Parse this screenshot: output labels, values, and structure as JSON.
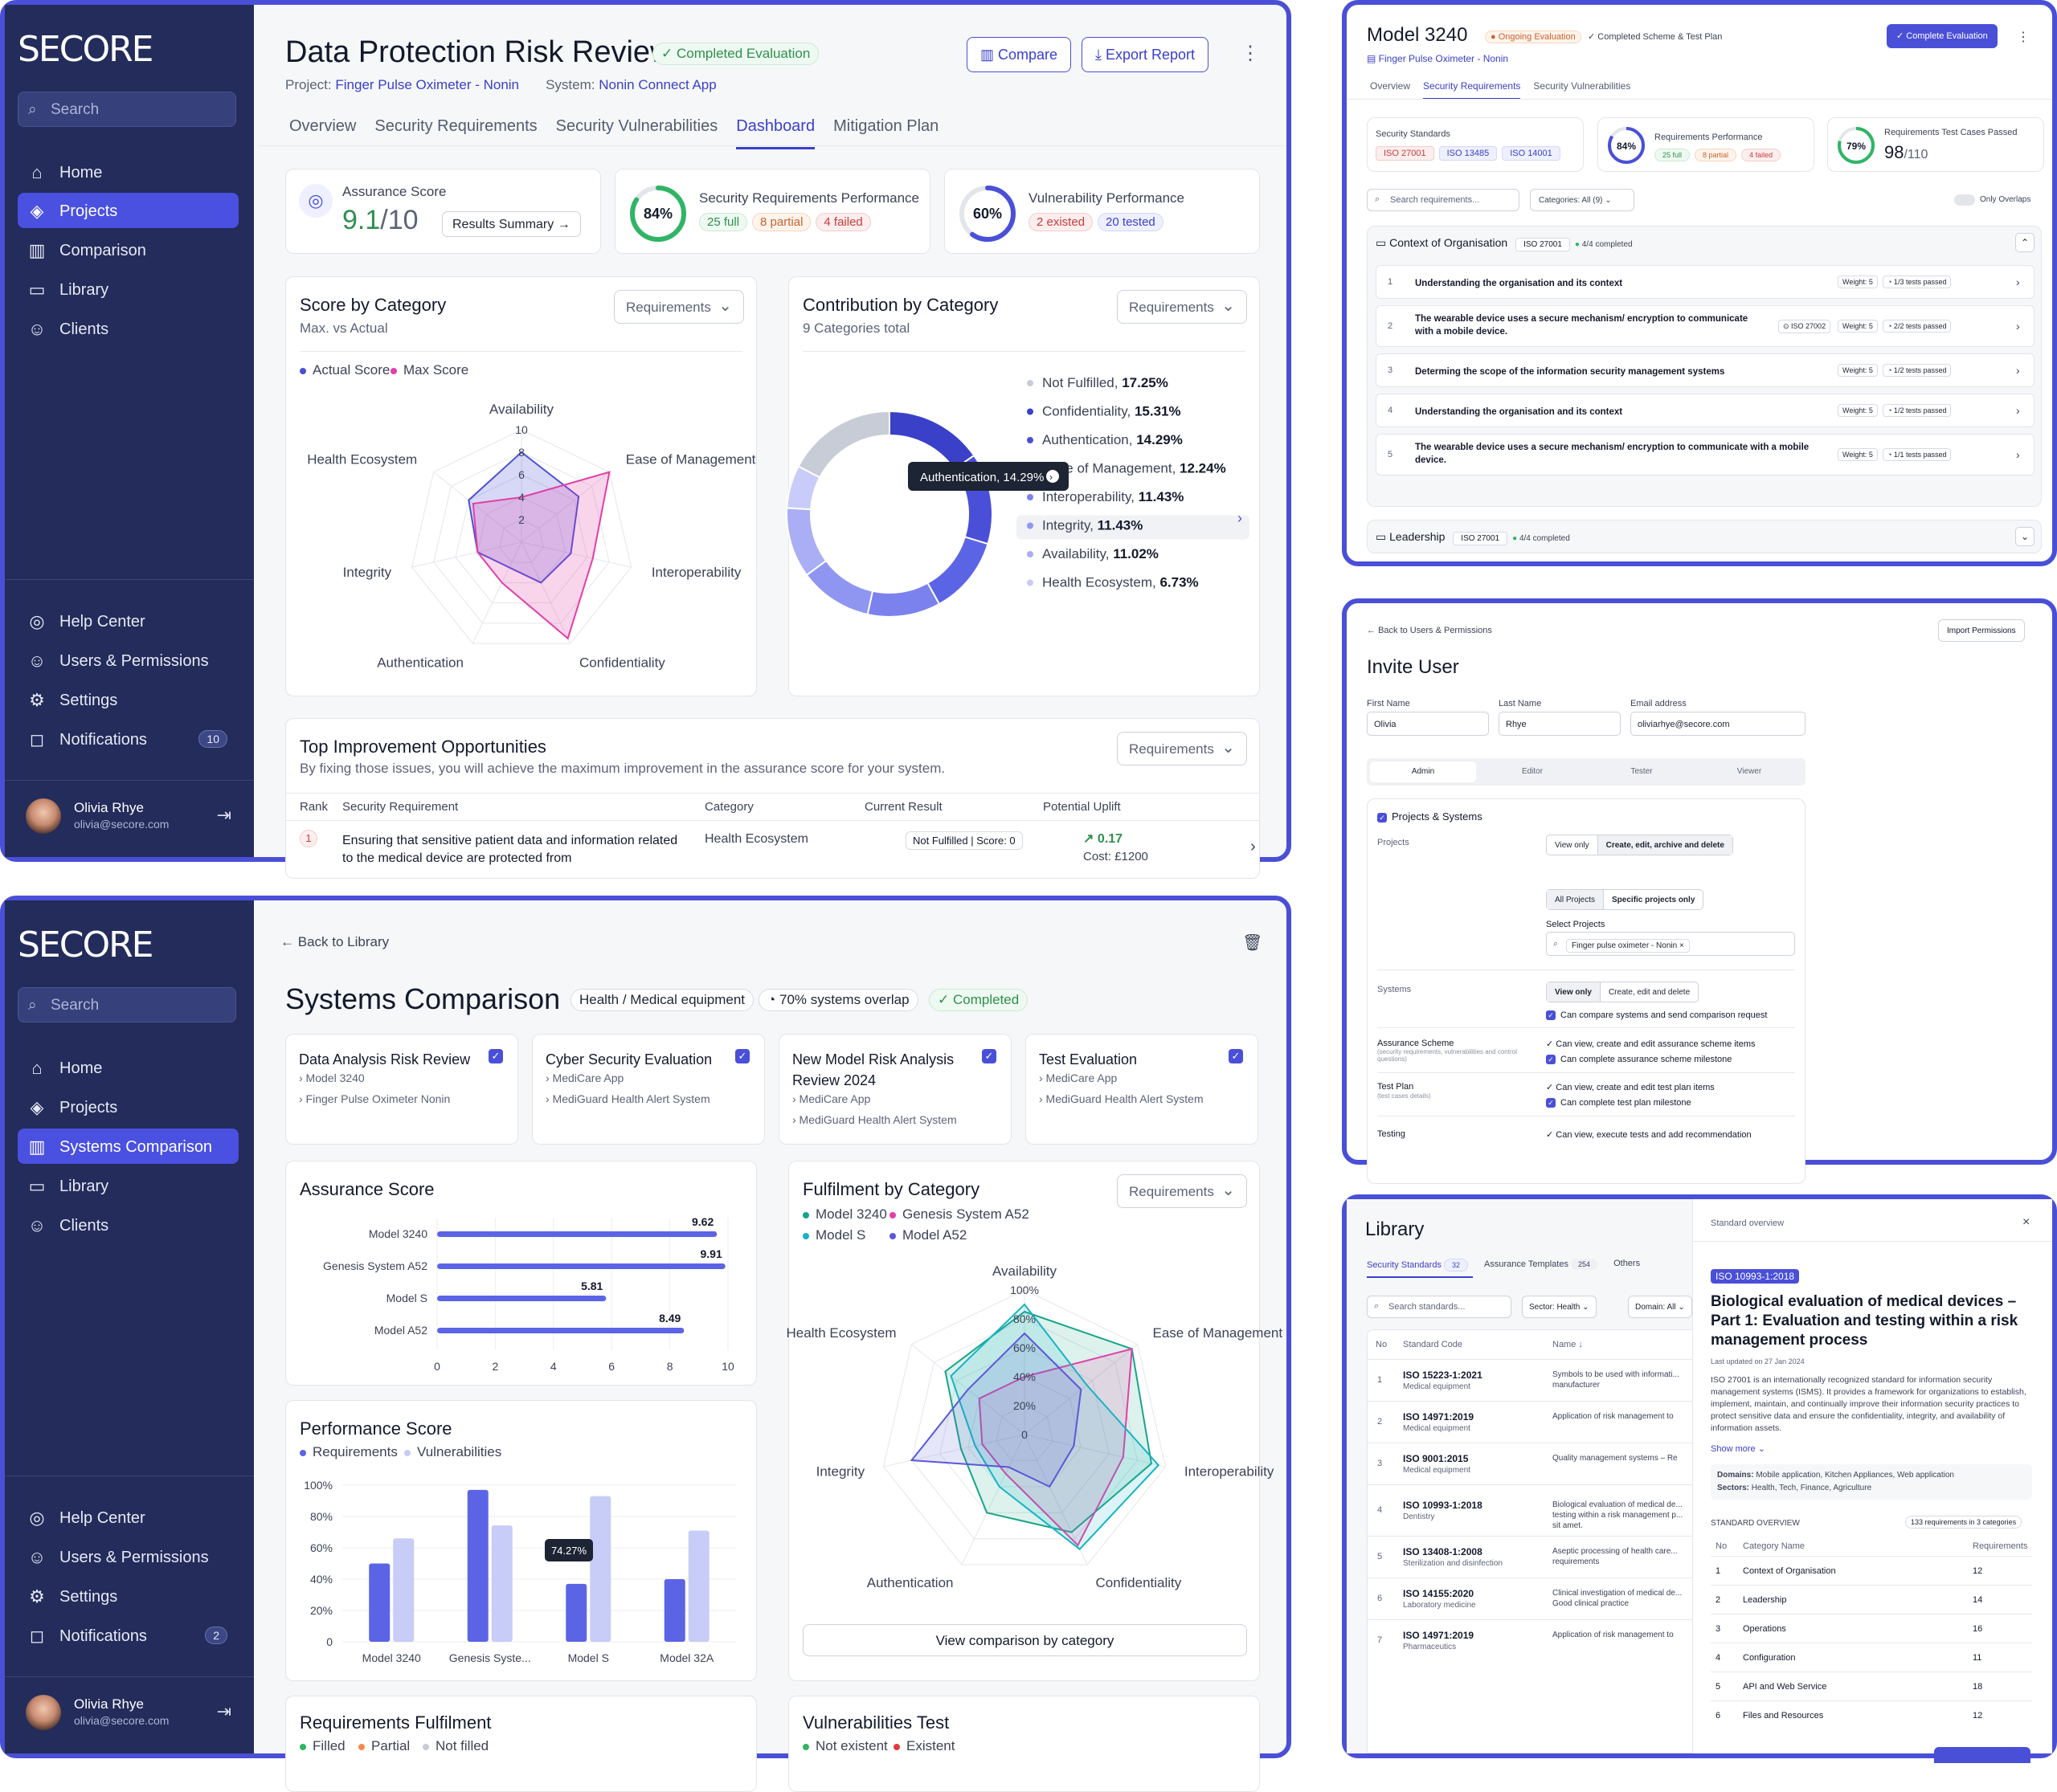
{
  "brand": "SECORE",
  "sidebar": {
    "search_placeholder": "Search",
    "nav1": [
      "Home",
      "Projects",
      "Comparison",
      "Library",
      "Clients"
    ],
    "nav2": [
      "Home",
      "Projects",
      "Systems Comparison",
      "Library",
      "Clients"
    ],
    "bottom": [
      "Help Center",
      "Users & Permissions",
      "Settings",
      "Notifications"
    ],
    "notif_count_1": "10",
    "notif_count_2": "2",
    "user_name": "Olivia Rhye",
    "user_email": "olivia@secore.com"
  },
  "risk": {
    "title": "Data Protection Risk Review",
    "status": "Completed Evaluation",
    "project_label": "Project:",
    "project": "Finger Pulse Oximeter - Nonin",
    "system_label": "System:",
    "system": "Nonin Connect App",
    "compare": "Compare",
    "export": "Export Report",
    "tabs": [
      "Overview",
      "Security Requirements",
      "Security Vulnerabilities",
      "Dashboard",
      "Mitigation Plan"
    ],
    "assurance_label": "Assurance Score",
    "assurance_value": "9.1",
    "assurance_max": "/10",
    "results_summary": "Results Summary",
    "req_perf_label": "Security Requirements Performance",
    "req_perf_pct": "84%",
    "req_perf_pct_value": 84,
    "req_tags": [
      "25 full",
      "8 partial",
      "4 failed"
    ],
    "vuln_perf_label": "Vulnerability Performance",
    "vuln_perf_pct": "60%",
    "vuln_perf_pct_value": 60,
    "vuln_tags": [
      "2 existed",
      "20 tested"
    ],
    "score_title": "Score by Category",
    "score_sub": "Max. vs Actual",
    "score_select": "Requirements",
    "contrib_title": "Contribution by Category",
    "contrib_sub": "9 Categories total",
    "contrib_select": "Requirements",
    "tooltip": "Authentication, 14.29%",
    "top_title": "Top Improvement Opportunities",
    "top_sub": "By fixing those issues, you will achieve the maximum improvement in the assurance score for your system.",
    "top_select": "Requirements",
    "table_headers": [
      "Rank",
      "Security Requirement",
      "Category",
      "Current Result",
      "Potential Uplift"
    ],
    "row1": {
      "rank": "1",
      "req": "Ensuring that sensitive patient data and information related to the medical device are protected from",
      "cat": "Health Ecosystem",
      "result": "Not Fulfilled",
      "score": "Score: 0",
      "uplift": "0.17",
      "cost": "Cost: £1200"
    }
  },
  "chart_data": [
    {
      "type": "radar",
      "id": "score-by-category",
      "title": "Score by Category",
      "categories": [
        "Availability",
        "Ease of Management",
        "Interoperability",
        "Confidentiality",
        "Authentication",
        "Integrity",
        "Health Ecosystem"
      ],
      "rticks": [
        "2",
        "4",
        "6",
        "8",
        "10"
      ],
      "rmax": 10,
      "series": [
        {
          "name": "Actual Score",
          "color": "#4a4fd8",
          "values": [
            8,
            6.5,
            4.5,
            4,
            2.5,
            4,
            6
          ]
        },
        {
          "name": "Max Score",
          "color": "#e23fa8",
          "values": [
            4,
            10,
            6.5,
            9.5,
            4,
            4,
            5.5
          ]
        }
      ]
    },
    {
      "type": "pie",
      "id": "contribution-by-category",
      "title": "Contribution by Category",
      "labels": [
        "Not Fulfilled",
        "Confidentiality",
        "Authentication",
        "Ease of Management",
        "Interoperability",
        "Integrity",
        "Availability",
        "Health Ecosystem"
      ],
      "pct_text": [
        "17.25%",
        "15.31%",
        "14.29%",
        "12.24%",
        "11.43%",
        "11.43%",
        "11.02%",
        "6.73%"
      ],
      "values": [
        17.25,
        15.31,
        14.29,
        12.24,
        11.43,
        11.43,
        11.02,
        6.73
      ],
      "colors": [
        "#c8ccd6",
        "#3a40c8",
        "#4a4fd8",
        "#5c64e6",
        "#7b82ee",
        "#8f96f2",
        "#a9aef5",
        "#c9ccf8"
      ]
    },
    {
      "type": "bar",
      "id": "assurance-score",
      "title": "Assurance Score",
      "orientation": "horizontal",
      "categories": [
        "Model 3240",
        "Genesis System A52",
        "Model S",
        "Model A52"
      ],
      "values": [
        9.62,
        9.91,
        5.81,
        8.49
      ],
      "labels": [
        "9.62",
        "9.91",
        "5.81",
        "8.49"
      ],
      "xlim": [
        0,
        10
      ],
      "xticks": [
        "0",
        "2",
        "4",
        "6",
        "8",
        "10"
      ]
    },
    {
      "type": "bar",
      "id": "performance-score",
      "title": "Performance Score",
      "categories": [
        "Model 3240",
        "Genesis Syste...",
        "Model S",
        "Model 32A"
      ],
      "yticks": [
        "0",
        "20%",
        "40%",
        "60%",
        "80%",
        "100%"
      ],
      "ylim": [
        0,
        100
      ],
      "series": [
        {
          "name": "Requirements",
          "color": "#5c64e6",
          "values": [
            50,
            97,
            37,
            40
          ]
        },
        {
          "name": "Vulnerabilities",
          "color": "#c7cdf7",
          "values": [
            66,
            74.27,
            93,
            71
          ]
        }
      ],
      "tooltip": "74.27%"
    },
    {
      "type": "radar",
      "id": "fulfilment-by-category",
      "title": "Fulfilment by Category",
      "categories": [
        "Availability",
        "Ease of Management",
        "Interoperability",
        "Confidentiality",
        "Authentication",
        "Integrity",
        "Health Ecosystem"
      ],
      "rticks": [
        "0",
        "20%",
        "40%",
        "60%",
        "80%",
        "100%"
      ],
      "rmax": 100,
      "series": [
        {
          "name": "Model 3240",
          "color": "#18a589",
          "values": [
            85,
            95,
            90,
            75,
            60,
            45,
            70
          ]
        },
        {
          "name": "Genesis System A52",
          "color": "#e23fa8",
          "values": [
            40,
            95,
            70,
            85,
            30,
            30,
            40
          ]
        },
        {
          "name": "Model S",
          "color": "#17b3c6",
          "values": [
            90,
            55,
            95,
            88,
            40,
            35,
            65
          ]
        },
        {
          "name": "Model A52",
          "color": "#5a58d8",
          "values": [
            70,
            50,
            35,
            40,
            25,
            80,
            50
          ]
        }
      ]
    }
  ],
  "comparison": {
    "back": "Back to Library",
    "title": "Systems Comparison",
    "tag_domain": "Health / Medical equipment",
    "overlap": "70% systems overlap",
    "status": "Completed",
    "evals": [
      {
        "title": "Data Analysis Risk Review",
        "items": [
          "Model 3240",
          "Finger Pulse Oximeter Nonin"
        ]
      },
      {
        "title": "Cyber Security Evaluation",
        "items": [
          "MediCare App",
          "MediGuard Health Alert System"
        ]
      },
      {
        "title": "New Model Risk Analysis Review 2024",
        "items": [
          "MediCare App",
          "MediGuard Health Alert System"
        ]
      },
      {
        "title": "Test Evaluation",
        "items": [
          "MediCare App",
          "MediGuard Health Alert System"
        ]
      }
    ],
    "assurance_title": "Assurance Score",
    "perf_title": "Performance Score",
    "perf_legend": [
      "Requirements",
      "Vulnerabilities"
    ],
    "fulfil_title": "Fulfilment by Category",
    "fulfil_select": "Requirements",
    "fulfil_legend": [
      "Model 3240",
      "Genesis System A52",
      "Model S",
      "Model A52"
    ],
    "view_btn": "View comparison by category",
    "req_fulfil_title": "Requirements Fulfilment",
    "req_fulfil_legend": [
      "Filled",
      "Partial",
      "Not filled"
    ],
    "vuln_test_title": "Vulnerabilities Test",
    "vuln_test_legend": [
      "Not existent",
      "Existent"
    ]
  },
  "model": {
    "title": "Model 3240",
    "status": "Ongoing Evaluation",
    "scheme": "Completed Scheme & Test Plan",
    "subtitle": "Finger Pulse Oximeter - Nonin",
    "complete_btn": "Complete Evaluation",
    "tabs": [
      "Overview",
      "Security Requirements",
      "Security Vulnerabilities"
    ],
    "std_label": "Security Standards",
    "standards": [
      "ISO 27001",
      "ISO 13485",
      "ISO 14001"
    ],
    "req_perf_label": "Requirements Performance",
    "req_perf_pct": "84%",
    "req_tags": [
      "25 full",
      "8 partial",
      "4 failed"
    ],
    "tc_label": "Requirements Test Cases Passed",
    "tc_pct": "79%",
    "tc_value": "98",
    "tc_total": "/110",
    "search_placeholder": "Search requirements...",
    "categories_filter": "Categories:  All (9)",
    "only_overlaps": "Only Overlaps",
    "group1": {
      "title": "Context of Organisation",
      "std": "ISO 27001",
      "progress": "4/4",
      "completed": "completed"
    },
    "rows": [
      {
        "no": "1",
        "text": "Understanding the organisation and its context",
        "iso": "",
        "weight": "Weight: 5",
        "tests": "1/3 tests passed"
      },
      {
        "no": "2",
        "text": "The wearable device uses a secure mechanism/ encryption to communicate with a mobile device.",
        "iso": "ISO 27002",
        "weight": "Weight: 5",
        "tests": "2/2 tests passed"
      },
      {
        "no": "3",
        "text": "Determing the scope of the information security management systems",
        "iso": "",
        "weight": "Weight: 5",
        "tests": "1/2 tests passed"
      },
      {
        "no": "4",
        "text": "Understanding the organisation and its context",
        "iso": "",
        "weight": "Weight: 5",
        "tests": "1/2 tests passed"
      },
      {
        "no": "5",
        "text": "The wearable device uses a secure mechanism/ encryption to communicate with a mobile device.",
        "iso": "",
        "weight": "Weight: 5",
        "tests": "1/1 tests passed"
      }
    ],
    "group2": {
      "title": "Leadership",
      "std": "ISO 27001",
      "progress": "4/4",
      "completed": "completed"
    }
  },
  "invite": {
    "back": "Back to Users & Permissions",
    "import": "Import Permissions",
    "title": "Invite User",
    "first_label": "First Name",
    "first": "Olivia",
    "last_label": "Last Name",
    "last": "Rhye",
    "email_label": "Email address",
    "email": "oliviarhye@secore.com",
    "roles": [
      "Admin",
      "Editor",
      "Tester",
      "Viewer"
    ],
    "section": "Projects & Systems",
    "projects_label": "Projects",
    "proj_opts": [
      "View only",
      "Create, edit, archive and delete"
    ],
    "scope_opts": [
      "All Projects",
      "Specific projects only"
    ],
    "select_projects": "Select Projects",
    "chip": "Finger pulse oximeter - Nonin",
    "systems_label": "Systems",
    "sys_opts": [
      "View only",
      "Create, edit and delete"
    ],
    "sys_perm": "Can compare systems and send comparison request",
    "scheme_label": "Assurance Scheme",
    "scheme_sub": "(security requirements, vulnerabilities and control questions)",
    "scheme_perms": [
      "Can view, create and edit assurance scheme items",
      "Can complete assurance scheme milestone"
    ],
    "plan_label": "Test Plan",
    "plan_sub": "(test cases details)",
    "plan_perms": [
      "Can view, create and edit test plan items",
      "Can complete test plan milestone"
    ],
    "testing_label": "Testing",
    "testing_perm": "Can view, execute tests and add recommendation"
  },
  "library": {
    "title": "Library",
    "tabs": [
      "Security Standards",
      "Assurance Templates",
      "Others"
    ],
    "tab_counts": [
      "32",
      "254"
    ],
    "search_placeholder": "Search standards...",
    "sector": "Sector: Health",
    "domain": "Domain: All",
    "headers": [
      "No",
      "Standard Code",
      "Name ↓"
    ],
    "rows": [
      {
        "no": "1",
        "code": "ISO 15223-1:2021",
        "sub": "Medical equipment",
        "name": "Symbols to be used with informati... manufacturer"
      },
      {
        "no": "2",
        "code": "ISO 14971:2019",
        "sub": "Medical equipment",
        "name": "Application of risk management to"
      },
      {
        "no": "3",
        "code": "ISO 9001:2015",
        "sub": "Medical equipment",
        "name": "Quality management systems – Re"
      },
      {
        "no": "4",
        "code": "ISO 10993-1:2018",
        "sub": "Dentistry",
        "name": "Biological evaluation of medical de... testing within a risk management p... sit amet."
      },
      {
        "no": "5",
        "code": "ISO 13408-1:2008",
        "sub": "Sterilization and disinfection",
        "name": "Aseptic processing of health care... requirements"
      },
      {
        "no": "6",
        "code": "ISO 14155:2020",
        "sub": "Laboratory medicine",
        "name": "Clinical investigation of medical de... Good clinical practice"
      },
      {
        "no": "7",
        "code": "ISO 14971:2019",
        "sub": "Pharmaceutics",
        "name": "Application of risk management to"
      }
    ],
    "panel": {
      "label": "Standard overview",
      "code": "ISO 10993-1:2018",
      "title": "Biological evaluation of medical devices – Part 1: Evaluation and testing within a risk management process",
      "updated": "Last updated on 27 Jan 2024",
      "desc": "ISO 27001 is an internationally recognized standard for information security management systems (ISMS). It provides a framework for organizations to establish, implement, maintain, and continually improve their information security practices to protect sensitive data and ensure the confidentiality, integrity, and availability of information assets.",
      "show_more": "Show more",
      "domains_label": "Domains:",
      "domains": "Mobile application, Kitchen Appliances, Web application",
      "sectors_label": "Sectors:",
      "sectors": "Health, Tech, Finance, Agriculture",
      "overview_label": "STANDARD OVERVIEW",
      "overview_count": "133 requirements in 3 categories",
      "cat_headers": [
        "No",
        "Category Name",
        "Requirements"
      ],
      "cats": [
        {
          "no": "1",
          "name": "Context of Organisation",
          "n": "12"
        },
        {
          "no": "2",
          "name": "Leadership",
          "n": "14"
        },
        {
          "no": "3",
          "name": "Operations",
          "n": "16"
        },
        {
          "no": "4",
          "name": "Configuration",
          "n": "11"
        },
        {
          "no": "5",
          "name": "API and Web Service",
          "n": "18"
        },
        {
          "no": "6",
          "name": "Files and Resources",
          "n": "12"
        }
      ]
    }
  }
}
